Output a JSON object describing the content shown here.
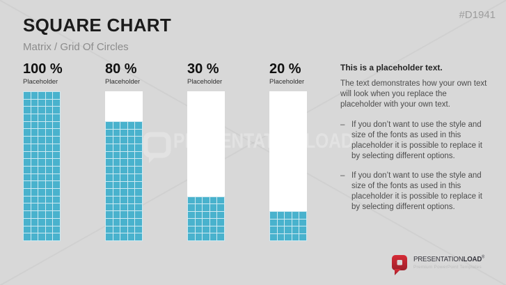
{
  "slide": {
    "code": "#D1941",
    "title": "SQUARE CHART",
    "subtitle": "Matrix / Grid Of Circles"
  },
  "chart_data": {
    "type": "bar",
    "variant": "waffle-square-grid",
    "title": "Square Chart",
    "unit_per_square_percent": 1,
    "grid": {
      "columns": 5,
      "rows": 20
    },
    "categories": [
      "Placeholder",
      "Placeholder",
      "Placeholder",
      "Placeholder"
    ],
    "values": [
      100,
      80,
      30,
      20
    ],
    "value_labels": [
      "100 %",
      "80 %",
      "30 %",
      "20 %"
    ],
    "ylim": [
      0,
      100
    ],
    "fill_color": "#49b2cd",
    "empty_color": "#ffffff",
    "gridline_color": "#cfe9f1"
  },
  "text_panel": {
    "heading": "This is a placeholder text.",
    "intro": "The text demonstrates how your own text\nwill look when you replace the\nplaceholder with your own text.",
    "bullet_marker": "–",
    "bullets": [
      "If you don’t want to use the style and\nsize of the fonts as used in this\nplaceholder it is possible to replace it\nby selecting different options.",
      "If you don’t want to use the style and\nsize of the fonts as used in this\nplaceholder it is possible to replace it\nby selecting different options."
    ]
  },
  "watermark": {
    "text": "PRESENTATIONLOAD"
  },
  "footer": {
    "brand_main": "PRESENTATION",
    "brand_bold": "LOAD",
    "brand_reg": "®",
    "tagline": "Premium PowerPoint Templates"
  },
  "colors": {
    "background": "#d8d8d8",
    "square_fill": "#49b2cd",
    "brand_red": "#c2202c",
    "watermark": "#e2e2e2"
  }
}
